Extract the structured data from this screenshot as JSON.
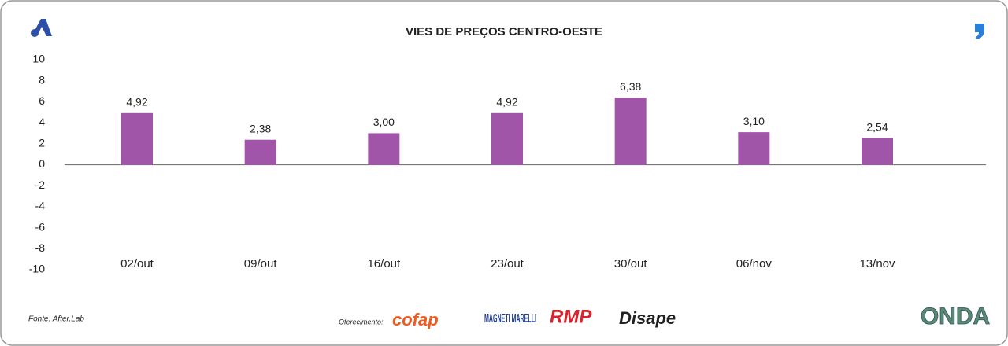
{
  "chart_data": {
    "type": "bar",
    "title": "VIES DE PREÇOS CENTRO-OESTE",
    "categories": [
      "02/out",
      "09/out",
      "16/out",
      "23/out",
      "30/out",
      "06/nov",
      "13/nov"
    ],
    "values": [
      4.92,
      2.38,
      3.0,
      4.92,
      6.38,
      3.1,
      2.54
    ],
    "value_labels": [
      "4,92",
      "2,38",
      "3,00",
      "4,92",
      "6,38",
      "3,10",
      "2,54"
    ],
    "color": "#a155a8",
    "ylim": [
      -10,
      10
    ],
    "yticks": [
      10,
      8,
      6,
      4,
      2,
      0,
      -2,
      -4,
      -6,
      -8,
      -10
    ],
    "grid": false
  },
  "footer": {
    "source": "Fonte: After.Lab",
    "sponsor_label": "Oferecimento:",
    "sponsors": [
      "cofap",
      "MAGNETI MARELLI",
      "RMP",
      "Disape"
    ],
    "brand": "ONDA"
  }
}
